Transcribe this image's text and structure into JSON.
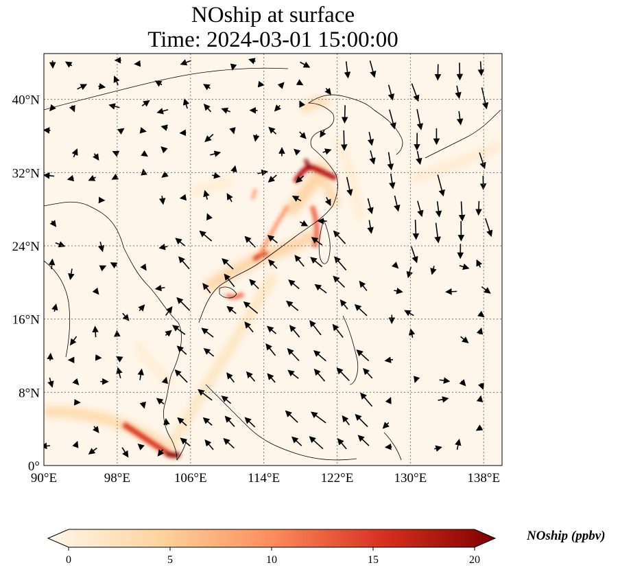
{
  "title_line1": "NOship at surface",
  "title_line2": "Time: 2024-03-01 15:00:00",
  "map": {
    "lon_range": [
      90,
      140
    ],
    "lat_range": [
      0,
      45
    ],
    "lon_ticks": [
      {
        "value": 90,
        "label": "90°E"
      },
      {
        "value": 98,
        "label": "98°E"
      },
      {
        "value": 106,
        "label": "106°E"
      },
      {
        "value": 114,
        "label": "114°E"
      },
      {
        "value": 122,
        "label": "122°E"
      },
      {
        "value": 130,
        "label": "130°E"
      },
      {
        "value": 138,
        "label": "138°E"
      }
    ],
    "lat_ticks": [
      {
        "value": 0,
        "label": "0°"
      },
      {
        "value": 8,
        "label": "8°N"
      },
      {
        "value": 16,
        "label": "16°N"
      },
      {
        "value": 24,
        "label": "24°N"
      },
      {
        "value": 32,
        "label": "32°N"
      },
      {
        "value": 40,
        "label": "40°N"
      }
    ],
    "gridlines": true
  },
  "colorbar": {
    "label": "NOship (ppbv)",
    "min": 0,
    "max": 20,
    "ticks": [
      {
        "value": 0,
        "label": "0"
      },
      {
        "value": 5,
        "label": "5"
      },
      {
        "value": 10,
        "label": "10"
      },
      {
        "value": 15,
        "label": "15"
      },
      {
        "value": 20,
        "label": "20"
      }
    ],
    "extend": "both",
    "colormap": [
      "#fff7ec",
      "#fdd49e",
      "#fc8d59",
      "#d7301f",
      "#7f0000"
    ]
  }
}
